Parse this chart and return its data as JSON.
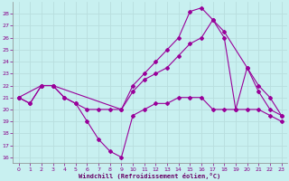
{
  "xlabel": "Windchill (Refroidissement éolien,°C)",
  "bg_color": "#c8f0f0",
  "line_color": "#990099",
  "grid_color": "#b8dede",
  "ylim": [
    15.5,
    29
  ],
  "xlim": [
    -0.5,
    23.5
  ],
  "yticks": [
    16,
    17,
    18,
    19,
    20,
    21,
    22,
    23,
    24,
    25,
    26,
    27,
    28
  ],
  "xticks": [
    0,
    1,
    2,
    3,
    4,
    5,
    6,
    7,
    8,
    9,
    10,
    11,
    12,
    13,
    14,
    15,
    16,
    17,
    18,
    19,
    20,
    21,
    22,
    23
  ],
  "series": [
    {
      "x": [
        0,
        2,
        3,
        9,
        10,
        11,
        12,
        13,
        14,
        15,
        16,
        17,
        18,
        20,
        21,
        22,
        23
      ],
      "y": [
        21,
        22,
        22,
        20,
        22,
        23,
        24,
        25,
        26,
        28.2,
        28.5,
        27.5,
        26.5,
        23.5,
        21.5,
        20,
        19.5
      ]
    },
    {
      "x": [
        0,
        1,
        2,
        3,
        4,
        5,
        6,
        7,
        8,
        9,
        10,
        11,
        12,
        13,
        14,
        15,
        16,
        17,
        18,
        19,
        20,
        21,
        22,
        23
      ],
      "y": [
        21,
        20.5,
        22,
        22,
        21,
        20.5,
        20,
        20,
        20,
        20,
        21.5,
        22.5,
        23,
        23.5,
        24.5,
        25.5,
        26,
        27.5,
        26,
        20,
        23.5,
        22,
        21,
        19.5
      ]
    },
    {
      "x": [
        0,
        1,
        2,
        3,
        4,
        5,
        6,
        7,
        8,
        9,
        10,
        11,
        12,
        13,
        14,
        15,
        16,
        17,
        18,
        19,
        20,
        21,
        22,
        23
      ],
      "y": [
        21,
        20.5,
        22,
        22,
        21,
        20.5,
        19,
        17.5,
        16.5,
        16,
        19.5,
        20,
        20.5,
        20.5,
        21,
        21,
        21,
        20,
        20,
        20,
        20,
        20,
        19.5,
        19
      ]
    }
  ]
}
